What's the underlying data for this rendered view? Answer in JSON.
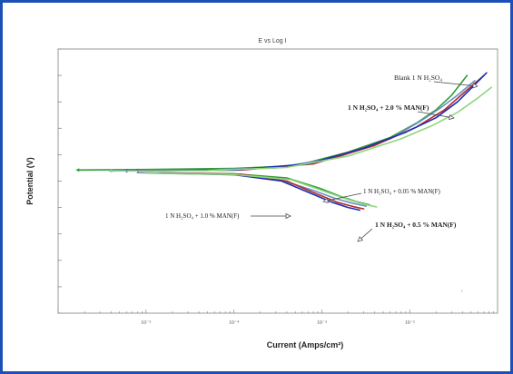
{
  "chart_data": {
    "type": "line",
    "title": "E vs Log I",
    "xlabel": "Current (Amps/cm²)",
    "ylabel": "Potential (V)",
    "x_scale": "log",
    "xlim": [
      1e-06,
      0.1
    ],
    "ylim": [
      -0.6,
      0.4
    ],
    "x_ticks": [
      1e-05,
      0.0001,
      0.001,
      0.01
    ],
    "x_tick_labels": [
      "10⁻⁵",
      "10⁻⁴",
      "10⁻³",
      "10⁻²"
    ],
    "y_ticks": [
      -0.6,
      -0.5,
      -0.4,
      -0.3,
      -0.2,
      -0.1,
      0.0,
      0.1,
      0.2,
      0.3,
      0.4
    ],
    "y_tick_labels": [
      "",
      "",
      "",
      "",
      "",
      "",
      "",
      "",
      "",
      "",
      ""
    ],
    "grid": false,
    "legend": "annotations",
    "annotations": [
      {
        "text": "Blank 1 N H₂SO₄",
        "series": 0
      },
      {
        "text": "1 N H₂SO₄ + 2.0 % MAN(F)",
        "series": 4,
        "bold": true
      },
      {
        "text": "1 N H₂SO₄ + 0.05 % MAN(F)",
        "series": 1
      },
      {
        "text": "1 N H₂SO₄ + 1.0 % MAN(F)",
        "series": 3
      },
      {
        "text": "1 N H₂SO₄ + 0.5 % MAN(F)",
        "series": 2,
        "bold": true
      }
    ],
    "series": [
      {
        "name": "Blank 1 N H₂SO₄",
        "color": "#2e9e35",
        "anodic": [
          [
            1.7e-06,
            -0.058
          ],
          [
            1e-05,
            -0.056
          ],
          [
            0.0001,
            -0.052
          ],
          [
            0.0005,
            -0.042
          ],
          [
            0.002,
            0.01
          ],
          [
            0.006,
            0.065
          ],
          [
            0.012,
            0.12
          ],
          [
            0.02,
            0.17
          ],
          [
            0.03,
            0.225
          ],
          [
            0.045,
            0.3
          ]
        ],
        "cathodic": [
          [
            1e-05,
            -0.068
          ],
          [
            0.0001,
            -0.072
          ],
          [
            0.0004,
            -0.088
          ],
          [
            0.001,
            -0.13
          ],
          [
            0.0017,
            -0.16
          ],
          [
            0.0025,
            -0.178
          ],
          [
            0.0035,
            -0.19
          ]
        ]
      },
      {
        "name": "1 N H₂SO₄ + 0.05 % MAN(F)",
        "color": "#6a8fc6",
        "anodic": [
          [
            4e-06,
            -0.06
          ],
          [
            4e-05,
            -0.058
          ],
          [
            0.0003,
            -0.05
          ],
          [
            0.0015,
            -0.01
          ],
          [
            0.006,
            0.06
          ],
          [
            0.013,
            0.125
          ],
          [
            0.022,
            0.175
          ],
          [
            0.035,
            0.225
          ],
          [
            0.055,
            0.28
          ]
        ],
        "cathodic": [
          [
            8e-06,
            -0.068
          ],
          [
            8e-05,
            -0.073
          ],
          [
            0.0003,
            -0.09
          ],
          [
            0.0008,
            -0.135
          ],
          [
            0.0014,
            -0.165
          ],
          [
            0.0022,
            -0.183
          ],
          [
            0.0032,
            -0.195
          ]
        ]
      },
      {
        "name": "1 N H₂SO₄ + 0.5 % MAN(F)",
        "color": "#b22a2a",
        "anodic": [
          [
            8e-06,
            -0.06
          ],
          [
            0.00012,
            -0.058
          ],
          [
            0.0008,
            -0.035
          ],
          [
            0.004,
            0.035
          ],
          [
            0.012,
            0.105
          ],
          [
            0.025,
            0.17
          ],
          [
            0.045,
            0.245
          ],
          [
            0.07,
            0.3
          ]
        ],
        "cathodic": [
          [
            1.5e-05,
            -0.069
          ],
          [
            0.00012,
            -0.074
          ],
          [
            0.0004,
            -0.1
          ],
          [
            0.0009,
            -0.15
          ],
          [
            0.0015,
            -0.18
          ],
          [
            0.0023,
            -0.197
          ],
          [
            0.003,
            -0.205
          ]
        ]
      },
      {
        "name": "1 N H₂SO₄ + 1.0 % MAN(F)",
        "color": "#1f2fb0",
        "anodic": [
          [
            6e-06,
            -0.061
          ],
          [
            0.0001,
            -0.058
          ],
          [
            0.0007,
            -0.035
          ],
          [
            0.003,
            0.025
          ],
          [
            0.009,
            0.085
          ],
          [
            0.02,
            0.14
          ],
          [
            0.035,
            0.2
          ],
          [
            0.055,
            0.265
          ],
          [
            0.075,
            0.31
          ]
        ],
        "cathodic": [
          [
            1.4e-05,
            -0.07
          ],
          [
            0.0001,
            -0.076
          ],
          [
            0.00035,
            -0.1
          ],
          [
            0.0008,
            -0.15
          ],
          [
            0.0013,
            -0.18
          ],
          [
            0.002,
            -0.2
          ],
          [
            0.0027,
            -0.21
          ]
        ]
      },
      {
        "name": "1 N H₂SO₄ + 2.0 % MAN(F)",
        "color": "#8fd67e",
        "anodic": [
          [
            4e-06,
            -0.062
          ],
          [
            5e-05,
            -0.06
          ],
          [
            0.0004,
            -0.048
          ],
          [
            0.002,
            -0.005
          ],
          [
            0.008,
            0.06
          ],
          [
            0.018,
            0.11
          ],
          [
            0.035,
            0.16
          ],
          [
            0.06,
            0.215
          ],
          [
            0.085,
            0.255
          ]
        ],
        "cathodic": [
          [
            1e-05,
            -0.07
          ],
          [
            0.0001,
            -0.075
          ],
          [
            0.00045,
            -0.095
          ],
          [
            0.0011,
            -0.14
          ],
          [
            0.002,
            -0.17
          ],
          [
            0.003,
            -0.187
          ],
          [
            0.0042,
            -0.198
          ]
        ]
      }
    ]
  }
}
